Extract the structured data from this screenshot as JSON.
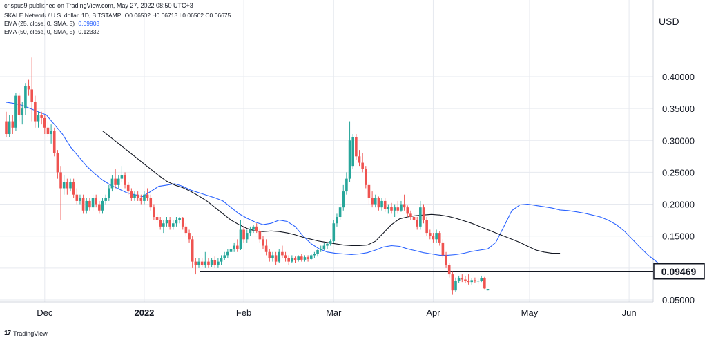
{
  "publisher": "crispus9 published on TradingView.com, May 27, 2022 08:50 UTC+3",
  "legend": {
    "symbol": "SKALE Network / U.S. dollar, 1D, BITSTAMP",
    "ohlc": "O0.06502 H0.06713 L0.06502 C0.06675",
    "ema25_label": "EMA (25, close, 0, SMA, 5)",
    "ema25_value": "0.09903",
    "ema50_label": "EMA (50, close, 0, SMA, 5)",
    "ema50_value": "0.12332"
  },
  "currency": "USD",
  "brand": "TradingView",
  "colors": {
    "up": "#26a69a",
    "down": "#ef5350",
    "ema25": "#2962ff",
    "ema50": "#131722",
    "grid": "#e6e9ef"
  },
  "chart_data": {
    "type": "candlestick",
    "x_ticks": [
      "Dec",
      "2022",
      "Feb",
      "Mar",
      "Apr",
      "May",
      "Jun"
    ],
    "y_ticks": [
      "0.40000",
      "0.35000",
      "0.30000",
      "0.25000",
      "0.20000",
      "0.15000",
      "0.05000"
    ],
    "ylim": [
      0.005,
      0.45
    ],
    "horizontal_line": {
      "value": 0.09469,
      "label": "0.09469"
    },
    "last_price": 0.06675,
    "start_date": "2021-11-19",
    "candles": [
      {
        "o": 0.33,
        "h": 0.345,
        "l": 0.305,
        "c": 0.31
      },
      {
        "o": 0.31,
        "h": 0.34,
        "l": 0.305,
        "c": 0.33
      },
      {
        "o": 0.33,
        "h": 0.34,
        "l": 0.31,
        "c": 0.32
      },
      {
        "o": 0.32,
        "h": 0.375,
        "l": 0.315,
        "c": 0.37
      },
      {
        "o": 0.37,
        "h": 0.375,
        "l": 0.33,
        "c": 0.34
      },
      {
        "o": 0.34,
        "h": 0.36,
        "l": 0.325,
        "c": 0.35
      },
      {
        "o": 0.35,
        "h": 0.39,
        "l": 0.34,
        "c": 0.385
      },
      {
        "o": 0.385,
        "h": 0.395,
        "l": 0.37,
        "c": 0.38
      },
      {
        "o": 0.38,
        "h": 0.43,
        "l": 0.33,
        "c": 0.36
      },
      {
        "o": 0.36,
        "h": 0.37,
        "l": 0.32,
        "c": 0.33
      },
      {
        "o": 0.33,
        "h": 0.345,
        "l": 0.32,
        "c": 0.34
      },
      {
        "o": 0.34,
        "h": 0.345,
        "l": 0.325,
        "c": 0.335
      },
      {
        "o": 0.335,
        "h": 0.34,
        "l": 0.31,
        "c": 0.32
      },
      {
        "o": 0.32,
        "h": 0.33,
        "l": 0.305,
        "c": 0.31
      },
      {
        "o": 0.31,
        "h": 0.325,
        "l": 0.295,
        "c": 0.315
      },
      {
        "o": 0.315,
        "h": 0.32,
        "l": 0.275,
        "c": 0.28
      },
      {
        "o": 0.28,
        "h": 0.285,
        "l": 0.24,
        "c": 0.25
      },
      {
        "o": 0.25,
        "h": 0.26,
        "l": 0.175,
        "c": 0.225
      },
      {
        "o": 0.225,
        "h": 0.245,
        "l": 0.215,
        "c": 0.235
      },
      {
        "o": 0.235,
        "h": 0.24,
        "l": 0.215,
        "c": 0.225
      },
      {
        "o": 0.225,
        "h": 0.24,
        "l": 0.22,
        "c": 0.235
      },
      {
        "o": 0.235,
        "h": 0.24,
        "l": 0.21,
        "c": 0.215
      },
      {
        "o": 0.215,
        "h": 0.225,
        "l": 0.2,
        "c": 0.205
      },
      {
        "o": 0.205,
        "h": 0.215,
        "l": 0.2,
        "c": 0.21
      },
      {
        "o": 0.21,
        "h": 0.215,
        "l": 0.185,
        "c": 0.19
      },
      {
        "o": 0.19,
        "h": 0.21,
        "l": 0.185,
        "c": 0.205
      },
      {
        "o": 0.205,
        "h": 0.21,
        "l": 0.19,
        "c": 0.195
      },
      {
        "o": 0.195,
        "h": 0.215,
        "l": 0.19,
        "c": 0.21
      },
      {
        "o": 0.21,
        "h": 0.215,
        "l": 0.195,
        "c": 0.2
      },
      {
        "o": 0.2,
        "h": 0.205,
        "l": 0.185,
        "c": 0.19
      },
      {
        "o": 0.19,
        "h": 0.21,
        "l": 0.185,
        "c": 0.205
      },
      {
        "o": 0.205,
        "h": 0.215,
        "l": 0.2,
        "c": 0.21
      },
      {
        "o": 0.21,
        "h": 0.23,
        "l": 0.205,
        "c": 0.225
      },
      {
        "o": 0.225,
        "h": 0.245,
        "l": 0.22,
        "c": 0.24
      },
      {
        "o": 0.24,
        "h": 0.255,
        "l": 0.225,
        "c": 0.23
      },
      {
        "o": 0.23,
        "h": 0.245,
        "l": 0.225,
        "c": 0.24
      },
      {
        "o": 0.24,
        "h": 0.26,
        "l": 0.235,
        "c": 0.245
      },
      {
        "o": 0.245,
        "h": 0.25,
        "l": 0.225,
        "c": 0.23
      },
      {
        "o": 0.23,
        "h": 0.235,
        "l": 0.215,
        "c": 0.22
      },
      {
        "o": 0.22,
        "h": 0.225,
        "l": 0.205,
        "c": 0.21
      },
      {
        "o": 0.21,
        "h": 0.22,
        "l": 0.205,
        "c": 0.215
      },
      {
        "o": 0.215,
        "h": 0.22,
        "l": 0.205,
        "c": 0.21
      },
      {
        "o": 0.21,
        "h": 0.215,
        "l": 0.2,
        "c": 0.205
      },
      {
        "o": 0.205,
        "h": 0.22,
        "l": 0.2,
        "c": 0.215
      },
      {
        "o": 0.215,
        "h": 0.225,
        "l": 0.205,
        "c": 0.21
      },
      {
        "o": 0.21,
        "h": 0.215,
        "l": 0.19,
        "c": 0.195
      },
      {
        "o": 0.195,
        "h": 0.2,
        "l": 0.175,
        "c": 0.18
      },
      {
        "o": 0.18,
        "h": 0.185,
        "l": 0.17,
        "c": 0.175
      },
      {
        "o": 0.175,
        "h": 0.18,
        "l": 0.16,
        "c": 0.165
      },
      {
        "o": 0.165,
        "h": 0.175,
        "l": 0.155,
        "c": 0.17
      },
      {
        "o": 0.17,
        "h": 0.18,
        "l": 0.165,
        "c": 0.175
      },
      {
        "o": 0.175,
        "h": 0.18,
        "l": 0.16,
        "c": 0.165
      },
      {
        "o": 0.165,
        "h": 0.175,
        "l": 0.16,
        "c": 0.17
      },
      {
        "o": 0.17,
        "h": 0.18,
        "l": 0.165,
        "c": 0.175
      },
      {
        "o": 0.175,
        "h": 0.18,
        "l": 0.17,
        "c": 0.178
      },
      {
        "o": 0.178,
        "h": 0.18,
        "l": 0.16,
        "c": 0.165
      },
      {
        "o": 0.165,
        "h": 0.17,
        "l": 0.15,
        "c": 0.155
      },
      {
        "o": 0.155,
        "h": 0.16,
        "l": 0.14,
        "c": 0.145
      },
      {
        "o": 0.145,
        "h": 0.15,
        "l": 0.1,
        "c": 0.11
      },
      {
        "o": 0.11,
        "h": 0.115,
        "l": 0.09,
        "c": 0.105
      },
      {
        "o": 0.105,
        "h": 0.115,
        "l": 0.1,
        "c": 0.11
      },
      {
        "o": 0.11,
        "h": 0.115,
        "l": 0.102,
        "c": 0.105
      },
      {
        "o": 0.105,
        "h": 0.125,
        "l": 0.1,
        "c": 0.11
      },
      {
        "o": 0.11,
        "h": 0.115,
        "l": 0.1,
        "c": 0.105
      },
      {
        "o": 0.105,
        "h": 0.115,
        "l": 0.102,
        "c": 0.112
      },
      {
        "o": 0.112,
        "h": 0.118,
        "l": 0.1,
        "c": 0.105
      },
      {
        "o": 0.105,
        "h": 0.115,
        "l": 0.1,
        "c": 0.11
      },
      {
        "o": 0.11,
        "h": 0.12,
        "l": 0.105,
        "c": 0.115
      },
      {
        "o": 0.115,
        "h": 0.125,
        "l": 0.112,
        "c": 0.12
      },
      {
        "o": 0.12,
        "h": 0.13,
        "l": 0.115,
        "c": 0.125
      },
      {
        "o": 0.125,
        "h": 0.135,
        "l": 0.12,
        "c": 0.13
      },
      {
        "o": 0.13,
        "h": 0.14,
        "l": 0.125,
        "c": 0.135
      },
      {
        "o": 0.135,
        "h": 0.145,
        "l": 0.125,
        "c": 0.13
      },
      {
        "o": 0.13,
        "h": 0.175,
        "l": 0.128,
        "c": 0.16
      },
      {
        "o": 0.16,
        "h": 0.165,
        "l": 0.14,
        "c": 0.145
      },
      {
        "o": 0.145,
        "h": 0.16,
        "l": 0.14,
        "c": 0.155
      },
      {
        "o": 0.155,
        "h": 0.165,
        "l": 0.15,
        "c": 0.16
      },
      {
        "o": 0.16,
        "h": 0.168,
        "l": 0.155,
        "c": 0.165
      },
      {
        "o": 0.165,
        "h": 0.17,
        "l": 0.155,
        "c": 0.158
      },
      {
        "o": 0.158,
        "h": 0.162,
        "l": 0.14,
        "c": 0.145
      },
      {
        "o": 0.145,
        "h": 0.15,
        "l": 0.13,
        "c": 0.135
      },
      {
        "o": 0.135,
        "h": 0.145,
        "l": 0.12,
        "c": 0.125
      },
      {
        "o": 0.125,
        "h": 0.13,
        "l": 0.11,
        "c": 0.115
      },
      {
        "o": 0.115,
        "h": 0.125,
        "l": 0.11,
        "c": 0.12
      },
      {
        "o": 0.12,
        "h": 0.125,
        "l": 0.105,
        "c": 0.11
      },
      {
        "o": 0.11,
        "h": 0.13,
        "l": 0.108,
        "c": 0.125
      },
      {
        "o": 0.125,
        "h": 0.135,
        "l": 0.115,
        "c": 0.12
      },
      {
        "o": 0.12,
        "h": 0.125,
        "l": 0.11,
        "c": 0.115
      },
      {
        "o": 0.115,
        "h": 0.12,
        "l": 0.105,
        "c": 0.11
      },
      {
        "o": 0.11,
        "h": 0.12,
        "l": 0.108,
        "c": 0.115
      },
      {
        "o": 0.115,
        "h": 0.118,
        "l": 0.108,
        "c": 0.112
      },
      {
        "o": 0.112,
        "h": 0.12,
        "l": 0.11,
        "c": 0.118
      },
      {
        "o": 0.118,
        "h": 0.122,
        "l": 0.11,
        "c": 0.113
      },
      {
        "o": 0.113,
        "h": 0.12,
        "l": 0.11,
        "c": 0.117
      },
      {
        "o": 0.117,
        "h": 0.12,
        "l": 0.11,
        "c": 0.114
      },
      {
        "o": 0.114,
        "h": 0.122,
        "l": 0.112,
        "c": 0.12
      },
      {
        "o": 0.12,
        "h": 0.125,
        "l": 0.115,
        "c": 0.122
      },
      {
        "o": 0.122,
        "h": 0.13,
        "l": 0.118,
        "c": 0.128
      },
      {
        "o": 0.128,
        "h": 0.135,
        "l": 0.125,
        "c": 0.13
      },
      {
        "o": 0.13,
        "h": 0.14,
        "l": 0.128,
        "c": 0.135
      },
      {
        "o": 0.135,
        "h": 0.14,
        "l": 0.13,
        "c": 0.138
      },
      {
        "o": 0.138,
        "h": 0.145,
        "l": 0.135,
        "c": 0.142
      },
      {
        "o": 0.142,
        "h": 0.175,
        "l": 0.14,
        "c": 0.17
      },
      {
        "o": 0.17,
        "h": 0.185,
        "l": 0.165,
        "c": 0.18
      },
      {
        "o": 0.18,
        "h": 0.2,
        "l": 0.175,
        "c": 0.195
      },
      {
        "o": 0.195,
        "h": 0.23,
        "l": 0.19,
        "c": 0.22
      },
      {
        "o": 0.22,
        "h": 0.25,
        "l": 0.215,
        "c": 0.24
      },
      {
        "o": 0.24,
        "h": 0.33,
        "l": 0.235,
        "c": 0.3
      },
      {
        "o": 0.26,
        "h": 0.31,
        "l": 0.255,
        "c": 0.305
      },
      {
        "o": 0.305,
        "h": 0.31,
        "l": 0.27,
        "c": 0.275
      },
      {
        "o": 0.275,
        "h": 0.285,
        "l": 0.26,
        "c": 0.265
      },
      {
        "o": 0.265,
        "h": 0.28,
        "l": 0.25,
        "c": 0.255
      },
      {
        "o": 0.255,
        "h": 0.26,
        "l": 0.225,
        "c": 0.23
      },
      {
        "o": 0.23,
        "h": 0.235,
        "l": 0.2,
        "c": 0.21
      },
      {
        "o": 0.21,
        "h": 0.22,
        "l": 0.195,
        "c": 0.2
      },
      {
        "o": 0.2,
        "h": 0.215,
        "l": 0.195,
        "c": 0.21
      },
      {
        "o": 0.21,
        "h": 0.212,
        "l": 0.19,
        "c": 0.195
      },
      {
        "o": 0.195,
        "h": 0.21,
        "l": 0.19,
        "c": 0.205
      },
      {
        "o": 0.205,
        "h": 0.21,
        "l": 0.188,
        "c": 0.192
      },
      {
        "o": 0.192,
        "h": 0.2,
        "l": 0.185,
        "c": 0.196
      },
      {
        "o": 0.196,
        "h": 0.202,
        "l": 0.185,
        "c": 0.19
      },
      {
        "o": 0.19,
        "h": 0.2,
        "l": 0.18,
        "c": 0.195
      },
      {
        "o": 0.195,
        "h": 0.205,
        "l": 0.185,
        "c": 0.19
      },
      {
        "o": 0.19,
        "h": 0.205,
        "l": 0.188,
        "c": 0.2
      },
      {
        "o": 0.2,
        "h": 0.215,
        "l": 0.19,
        "c": 0.195
      },
      {
        "o": 0.195,
        "h": 0.198,
        "l": 0.18,
        "c": 0.185
      },
      {
        "o": 0.185,
        "h": 0.19,
        "l": 0.175,
        "c": 0.18
      },
      {
        "o": 0.18,
        "h": 0.185,
        "l": 0.17,
        "c": 0.175
      },
      {
        "o": 0.175,
        "h": 0.18,
        "l": 0.16,
        "c": 0.165
      },
      {
        "o": 0.165,
        "h": 0.205,
        "l": 0.16,
        "c": 0.195
      },
      {
        "o": 0.195,
        "h": 0.2,
        "l": 0.17,
        "c": 0.175
      },
      {
        "o": 0.175,
        "h": 0.18,
        "l": 0.15,
        "c": 0.155
      },
      {
        "o": 0.155,
        "h": 0.16,
        "l": 0.145,
        "c": 0.15
      },
      {
        "o": 0.15,
        "h": 0.155,
        "l": 0.14,
        "c": 0.145
      },
      {
        "o": 0.145,
        "h": 0.16,
        "l": 0.14,
        "c": 0.155
      },
      {
        "o": 0.155,
        "h": 0.158,
        "l": 0.135,
        "c": 0.14
      },
      {
        "o": 0.14,
        "h": 0.145,
        "l": 0.115,
        "c": 0.12
      },
      {
        "o": 0.12,
        "h": 0.125,
        "l": 0.1,
        "c": 0.105
      },
      {
        "o": 0.105,
        "h": 0.108,
        "l": 0.085,
        "c": 0.09
      },
      {
        "o": 0.09,
        "h": 0.095,
        "l": 0.058,
        "c": 0.065
      },
      {
        "o": 0.065,
        "h": 0.085,
        "l": 0.062,
        "c": 0.08
      },
      {
        "o": 0.08,
        "h": 0.088,
        "l": 0.076,
        "c": 0.084
      },
      {
        "o": 0.084,
        "h": 0.09,
        "l": 0.078,
        "c": 0.082
      },
      {
        "o": 0.082,
        "h": 0.088,
        "l": 0.076,
        "c": 0.08
      },
      {
        "o": 0.08,
        "h": 0.09,
        "l": 0.074,
        "c": 0.078
      },
      {
        "o": 0.078,
        "h": 0.084,
        "l": 0.074,
        "c": 0.081
      },
      {
        "o": 0.081,
        "h": 0.085,
        "l": 0.076,
        "c": 0.079
      },
      {
        "o": 0.079,
        "h": 0.083,
        "l": 0.075,
        "c": 0.08
      },
      {
        "o": 0.08,
        "h": 0.088,
        "l": 0.078,
        "c": 0.084
      },
      {
        "o": 0.084,
        "h": 0.086,
        "l": 0.066,
        "c": 0.068
      },
      {
        "o": 0.06502,
        "h": 0.06713,
        "l": 0.06502,
        "c": 0.06675
      }
    ],
    "ema25": [
      [
        0.36,
        0.358
      ],
      [
        0.355,
        0.35
      ],
      [
        0.345,
        0.34
      ],
      [
        0.325,
        0.31
      ],
      [
        0.29,
        0.275
      ],
      [
        0.26,
        0.248
      ],
      [
        0.238,
        0.23
      ],
      [
        0.224,
        0.218
      ],
      [
        0.215,
        0.212
      ],
      [
        0.22,
        0.228
      ],
      [
        0.23,
        0.232
      ],
      [
        0.228,
        0.222
      ],
      [
        0.218,
        0.214
      ],
      [
        0.21,
        0.205
      ],
      [
        0.195,
        0.185
      ],
      [
        0.178,
        0.172
      ],
      [
        0.168,
        0.17
      ],
      [
        0.175,
        0.173
      ],
      [
        0.165,
        0.15
      ],
      [
        0.138,
        0.13
      ],
      [
        0.125,
        0.123
      ],
      [
        0.122,
        0.121
      ],
      [
        0.122,
        0.124
      ],
      [
        0.128,
        0.133
      ],
      [
        0.135,
        0.134
      ],
      [
        0.13,
        0.127
      ],
      [
        0.124,
        0.122
      ],
      [
        0.12,
        0.12
      ],
      [
        0.121,
        0.123
      ],
      [
        0.126,
        0.128
      ],
      [
        0.13,
        0.14
      ],
      [
        0.165,
        0.19
      ],
      [
        0.199,
        0.2
      ],
      [
        0.198,
        0.196
      ],
      [
        0.194,
        0.191
      ],
      [
        0.19,
        0.188
      ],
      [
        0.186,
        0.183
      ],
      [
        0.18,
        0.175
      ],
      [
        0.168,
        0.158
      ],
      [
        0.145,
        0.132
      ],
      [
        0.12,
        0.11
      ],
      [
        0.1,
        0.099
      ]
    ],
    "ema50": [
      [
        0.315,
        0.305
      ],
      [
        0.295,
        0.285
      ],
      [
        0.275,
        0.265
      ],
      [
        0.255,
        0.245
      ],
      [
        0.236,
        0.23
      ],
      [
        0.226,
        0.22
      ],
      [
        0.213,
        0.205
      ],
      [
        0.195,
        0.185
      ],
      [
        0.175,
        0.168
      ],
      [
        0.162,
        0.158
      ],
      [
        0.157,
        0.158
      ],
      [
        0.157,
        0.155
      ],
      [
        0.152,
        0.148
      ],
      [
        0.145,
        0.142
      ],
      [
        0.14,
        0.138
      ],
      [
        0.136,
        0.135
      ],
      [
        0.135,
        0.136
      ],
      [
        0.142,
        0.155
      ],
      [
        0.168,
        0.177
      ],
      [
        0.18,
        0.182
      ],
      [
        0.183,
        0.184
      ],
      [
        0.183,
        0.181
      ],
      [
        0.178,
        0.174
      ],
      [
        0.17,
        0.165
      ],
      [
        0.16,
        0.155
      ],
      [
        0.15,
        0.145
      ],
      [
        0.14,
        0.134
      ],
      [
        0.128,
        0.125
      ],
      [
        0.123,
        0.123
      ]
    ]
  }
}
